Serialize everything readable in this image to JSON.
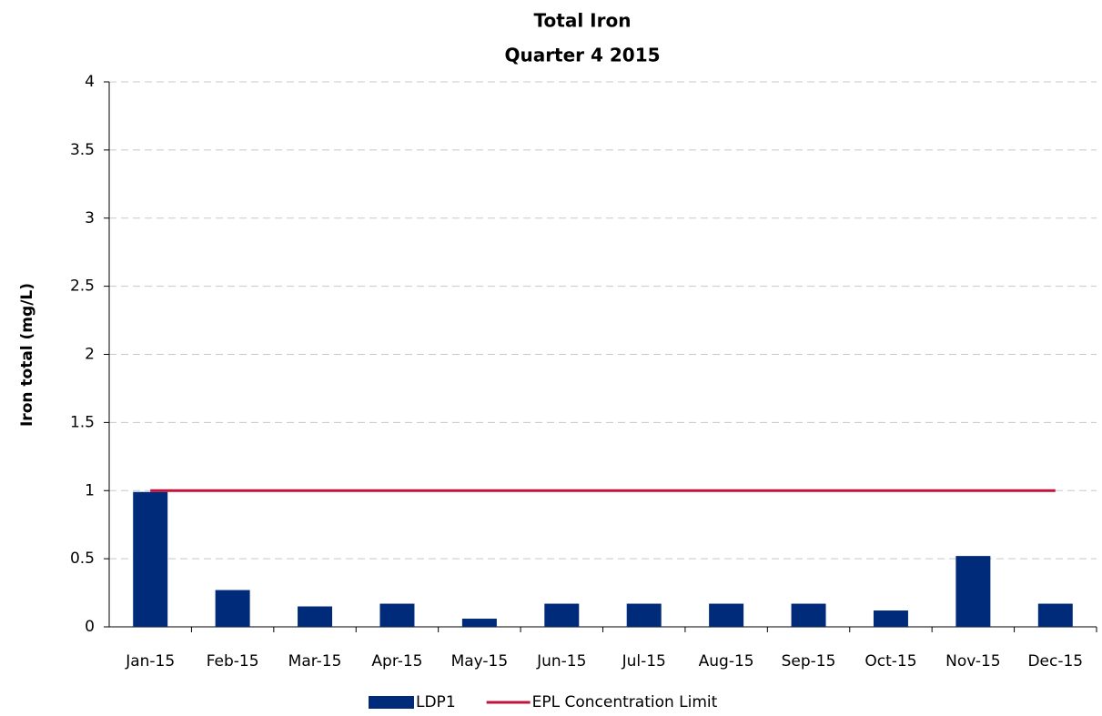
{
  "chart_data": {
    "type": "bar",
    "title": "Total Iron",
    "subtitle": "Quarter 4 2015",
    "y_label": "Iron total (mg/L)",
    "categories": [
      "Jan-15",
      "Feb-15",
      "Mar-15",
      "Apr-15",
      "May-15",
      "Jun-15",
      "Jul-15",
      "Aug-15",
      "Sep-15",
      "Oct-15",
      "Nov-15",
      "Dec-15"
    ],
    "series": [
      {
        "name": "LDP1",
        "type": "bar",
        "color": "#002a7a",
        "values": [
          0.99,
          0.27,
          0.15,
          0.17,
          0.06,
          0.17,
          0.17,
          0.17,
          0.17,
          0.12,
          0.52,
          0.17
        ]
      },
      {
        "name": "EPL Concentration Limit",
        "type": "line",
        "color": "#c0143c",
        "values": [
          1,
          1,
          1,
          1,
          1,
          1,
          1,
          1,
          1,
          1,
          1,
          1
        ]
      }
    ],
    "ylim": [
      0,
      4
    ],
    "yticks": [
      0,
      0.5,
      1,
      1.5,
      2,
      2.5,
      3,
      3.5,
      4
    ],
    "grid": true,
    "legend": "bottom"
  }
}
